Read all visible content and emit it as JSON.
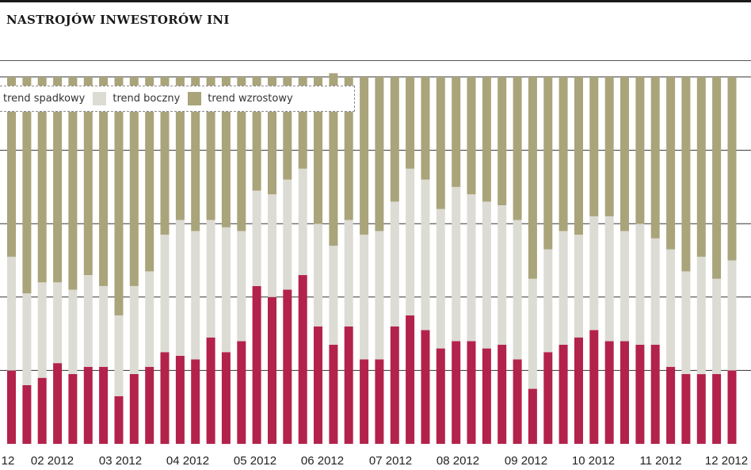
{
  "title": "NASTROJÓW INWESTORÓW INI",
  "legend": {
    "down_label": "trend spadkowy",
    "side_label": "trend boczny",
    "up_label": "trend wzrostowy"
  },
  "colors": {
    "down": "#b3224b",
    "side": "#dcdcd4",
    "up": "#a9a47a"
  },
  "chart_data": {
    "type": "bar",
    "stacked": true,
    "ylim": [
      0,
      100
    ],
    "gridlines": [
      20,
      40,
      60,
      80,
      100
    ],
    "x_tick_labels": [
      "12",
      "02 2012",
      "03 2012",
      "04 2012",
      "05 2012",
      "06 2012",
      "07 2012",
      "08 2012",
      "09 2012",
      "10 2012",
      "11 2012",
      "12 2012"
    ],
    "series": [
      {
        "name": "trend spadkowy",
        "values": [
          20,
          16,
          18,
          22,
          19,
          21,
          21,
          13,
          19,
          21,
          25,
          24,
          23,
          29,
          25,
          28,
          43,
          40,
          42,
          46,
          32,
          27,
          32,
          23,
          23,
          32,
          35,
          31,
          26,
          28,
          28,
          26,
          27,
          23,
          15,
          25,
          27,
          29,
          31,
          28,
          28,
          27,
          27,
          21,
          19,
          19,
          19,
          20
        ]
      },
      {
        "name": "trend boczny",
        "values": [
          31,
          25,
          26,
          22,
          23,
          25,
          22,
          22,
          24,
          26,
          32,
          37,
          35,
          32,
          34,
          30,
          26,
          28,
          30,
          29,
          28,
          27,
          29,
          34,
          35,
          34,
          40,
          41,
          38,
          42,
          40,
          40,
          38,
          38,
          30,
          28,
          31,
          28,
          31,
          34,
          30,
          33,
          29,
          32,
          28,
          32,
          26,
          30
        ]
      },
      {
        "name": "trend wzrostowy",
        "values": [
          49,
          59,
          56,
          56,
          58,
          54,
          57,
          65,
          57,
          53,
          43,
          39,
          42,
          39,
          41,
          42,
          31,
          32,
          28,
          25,
          40,
          47,
          39,
          43,
          42,
          34,
          25,
          28,
          36,
          30,
          32,
          34,
          35,
          39,
          55,
          47,
          42,
          43,
          38,
          38,
          42,
          40,
          44,
          47,
          53,
          49,
          55,
          50
        ]
      }
    ]
  }
}
